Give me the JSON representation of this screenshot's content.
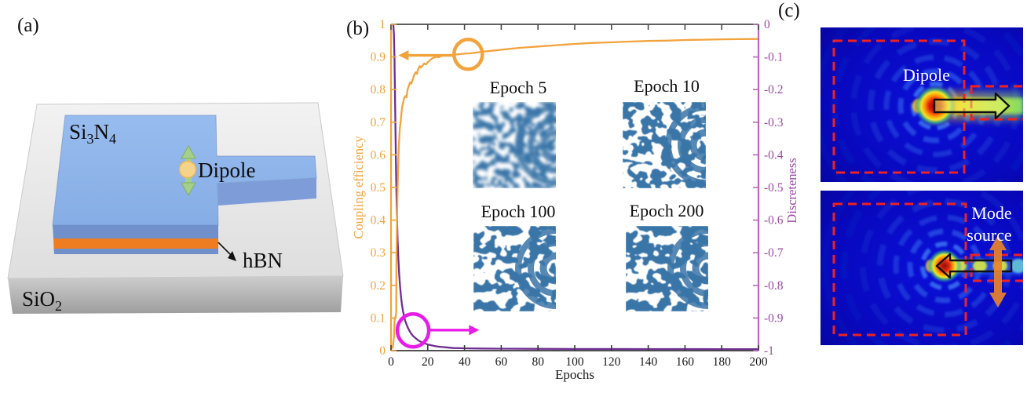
{
  "figure_labels": {
    "a": "(a)",
    "b": "(b)",
    "c": "(c)"
  },
  "panel_a": {
    "si3n4": {
      "p1": "Si",
      "s1": "3",
      "p2": "N",
      "s2": "4"
    },
    "dipole_label": "Dipole",
    "hbn_label": "hBN",
    "sio2": {
      "p1": "SiO",
      "s1": "2"
    },
    "colors": {
      "slab_top": "#90B7EC",
      "slab_front": "#7090CB",
      "hbn_layer": "#EE7D22",
      "substrate_top": "#ECECEC",
      "substrate_front": "#B9B9B9",
      "dipole_fill": "#F7D389",
      "dipole_arrow_green": "#A6CF8B"
    }
  },
  "chart_data": {
    "type": "line",
    "title": "",
    "xlabel": "Epochs",
    "ylabel_left": "Coupling efficiency",
    "ylabel_right": "Discreteness",
    "xlim": [
      0,
      200
    ],
    "ylim_left": [
      0,
      1
    ],
    "ylim_right": [
      -1,
      0
    ],
    "grid": false,
    "x_tick_values": [
      0,
      20,
      40,
      60,
      80,
      100,
      120,
      140,
      160,
      180,
      200
    ],
    "x_tick_labels": [
      "0",
      "20",
      "40",
      "60",
      "80",
      "100",
      "120",
      "140",
      "160",
      "180",
      "200"
    ],
    "left_tick_values": [
      0,
      0.1,
      0.2,
      0.3,
      0.4,
      0.5,
      0.6,
      0.7,
      0.8,
      0.9,
      1
    ],
    "left_tick_labels": [
      "0",
      "0.1",
      "0.2",
      "0.3",
      "0.4",
      "0.5",
      "0.6",
      "0.7",
      "0.8",
      "0.9",
      "1"
    ],
    "right_tick_values": [
      0,
      -0.1,
      -0.2,
      -0.3,
      -0.4,
      -0.5,
      -0.6,
      -0.7,
      -0.8,
      -0.9,
      -1
    ],
    "right_tick_labels": [
      "0",
      "-0.1",
      "-0.2",
      "-0.3",
      "-0.4",
      "-0.5",
      "-0.6",
      "-0.7",
      "-0.8",
      "-0.9",
      "-1"
    ],
    "axis_colors": {
      "left": "#F2A33C",
      "right": "#C063C5",
      "right_text": "#9C4AA5",
      "top": "#4A4A4A",
      "bottom": "#3A3A3A",
      "text": "#1A1A1A"
    },
    "series": [
      {
        "name": "Coupling efficiency",
        "axis": "left",
        "color": "#F2A33C",
        "points": [
          [
            0,
            0.005
          ],
          [
            1,
            0.01
          ],
          [
            1.6,
            0.04
          ],
          [
            2,
            0.1
          ],
          [
            2.6,
            0.105
          ],
          [
            2.8,
            0.12
          ],
          [
            3,
            0.3
          ],
          [
            3.4,
            0.45
          ],
          [
            3.8,
            0.55
          ],
          [
            4.2,
            0.62
          ],
          [
            4.8,
            0.68
          ],
          [
            5.4,
            0.71
          ],
          [
            6,
            0.745
          ],
          [
            6.6,
            0.76
          ],
          [
            7.2,
            0.775
          ],
          [
            7.8,
            0.78
          ],
          [
            8.4,
            0.776
          ],
          [
            9,
            0.8
          ],
          [
            9.6,
            0.81
          ],
          [
            10.4,
            0.822
          ],
          [
            11,
            0.818
          ],
          [
            11.8,
            0.83
          ],
          [
            12.6,
            0.845
          ],
          [
            13.4,
            0.853
          ],
          [
            14,
            0.848
          ],
          [
            14.8,
            0.862
          ],
          [
            15.6,
            0.872
          ],
          [
            16.2,
            0.867
          ],
          [
            17,
            0.872
          ],
          [
            18,
            0.88
          ],
          [
            19,
            0.877
          ],
          [
            20,
            0.884
          ],
          [
            21,
            0.889
          ],
          [
            22,
            0.894
          ],
          [
            23,
            0.897
          ],
          [
            24,
            0.899
          ],
          [
            25,
            0.901
          ],
          [
            26,
            0.899
          ],
          [
            27,
            0.902
          ],
          [
            28,
            0.904
          ],
          [
            30,
            0.906
          ],
          [
            32,
            0.906
          ],
          [
            34,
            0.907
          ],
          [
            36,
            0.908
          ],
          [
            38,
            0.909
          ],
          [
            40,
            0.91
          ],
          [
            43,
            0.911
          ],
          [
            46,
            0.913
          ],
          [
            50,
            0.916
          ],
          [
            55,
            0.919
          ],
          [
            60,
            0.922
          ],
          [
            65,
            0.925
          ],
          [
            70,
            0.928
          ],
          [
            75,
            0.93
          ],
          [
            80,
            0.932
          ],
          [
            85,
            0.934
          ],
          [
            90,
            0.936
          ],
          [
            95,
            0.938
          ],
          [
            100,
            0.94
          ],
          [
            110,
            0.943
          ],
          [
            120,
            0.945
          ],
          [
            130,
            0.947
          ],
          [
            140,
            0.949
          ],
          [
            150,
            0.95
          ],
          [
            160,
            0.952
          ],
          [
            170,
            0.953
          ],
          [
            180,
            0.954
          ],
          [
            190,
            0.9545
          ],
          [
            200,
            0.955
          ]
        ]
      },
      {
        "name": "Discreteness",
        "axis": "right",
        "color": "#6E2D91",
        "points": [
          [
            1.3,
            -0.002
          ],
          [
            1.6,
            -0.03
          ],
          [
            1.9,
            -0.1
          ],
          [
            2.2,
            -0.22
          ],
          [
            2.5,
            -0.36
          ],
          [
            2.8,
            -0.48
          ],
          [
            3.2,
            -0.58
          ],
          [
            3.6,
            -0.66
          ],
          [
            4,
            -0.72
          ],
          [
            4.5,
            -0.77
          ],
          [
            5,
            -0.808
          ],
          [
            5.5,
            -0.838
          ],
          [
            6,
            -0.86
          ],
          [
            6.5,
            -0.878
          ],
          [
            7,
            -0.892
          ],
          [
            7.5,
            -0.904
          ],
          [
            8,
            -0.913
          ],
          [
            9,
            -0.928
          ],
          [
            10,
            -0.939
          ],
          [
            11,
            -0.948
          ],
          [
            12,
            -0.955
          ],
          [
            13,
            -0.96
          ],
          [
            14,
            -0.965
          ],
          [
            15,
            -0.969
          ],
          [
            16,
            -0.972
          ],
          [
            17,
            -0.975
          ],
          [
            18,
            -0.977
          ],
          [
            19,
            -0.979
          ],
          [
            20,
            -0.981
          ],
          [
            22,
            -0.984
          ],
          [
            24,
            -0.986
          ],
          [
            26,
            -0.988
          ],
          [
            28,
            -0.989
          ],
          [
            30,
            -0.99
          ],
          [
            34,
            -0.992
          ],
          [
            38,
            -0.9925
          ],
          [
            42,
            -0.993
          ],
          [
            50,
            -0.9935
          ],
          [
            60,
            -0.994
          ],
          [
            80,
            -0.9945
          ],
          [
            100,
            -0.995
          ],
          [
            120,
            -0.995
          ],
          [
            140,
            -0.9952
          ],
          [
            160,
            -0.9953
          ],
          [
            180,
            -0.9954
          ],
          [
            200,
            -0.9955
          ]
        ]
      }
    ],
    "annotations": [
      {
        "id": "efficiency-callout",
        "color": "#F2A33C",
        "circle": {
          "x": 42,
          "y": 0.908,
          "r": 18
        },
        "arrow": {
          "from_x": 35,
          "to_x": 4,
          "y": 0.905
        }
      },
      {
        "id": "discreteness-callout",
        "color": "#E81CE8",
        "circle": {
          "x": 12,
          "y": 0.062,
          "r": 20
        },
        "arrow": {
          "from_x": 21,
          "to_x": 48,
          "y": 0.063
        }
      }
    ],
    "insets": [
      {
        "label": "Epoch 5"
      },
      {
        "label": "Epoch 10"
      },
      {
        "label": "Epoch 100"
      },
      {
        "label": "Epoch 200"
      }
    ],
    "inset_pattern_color": "#3A75A8"
  },
  "panel_c": {
    "top_label": "Dipole",
    "bottom_label_1": "Mode",
    "bottom_label_2": "source",
    "dashed_box_color": "#EE2222",
    "mode_arrow_color": "#E8832C"
  }
}
